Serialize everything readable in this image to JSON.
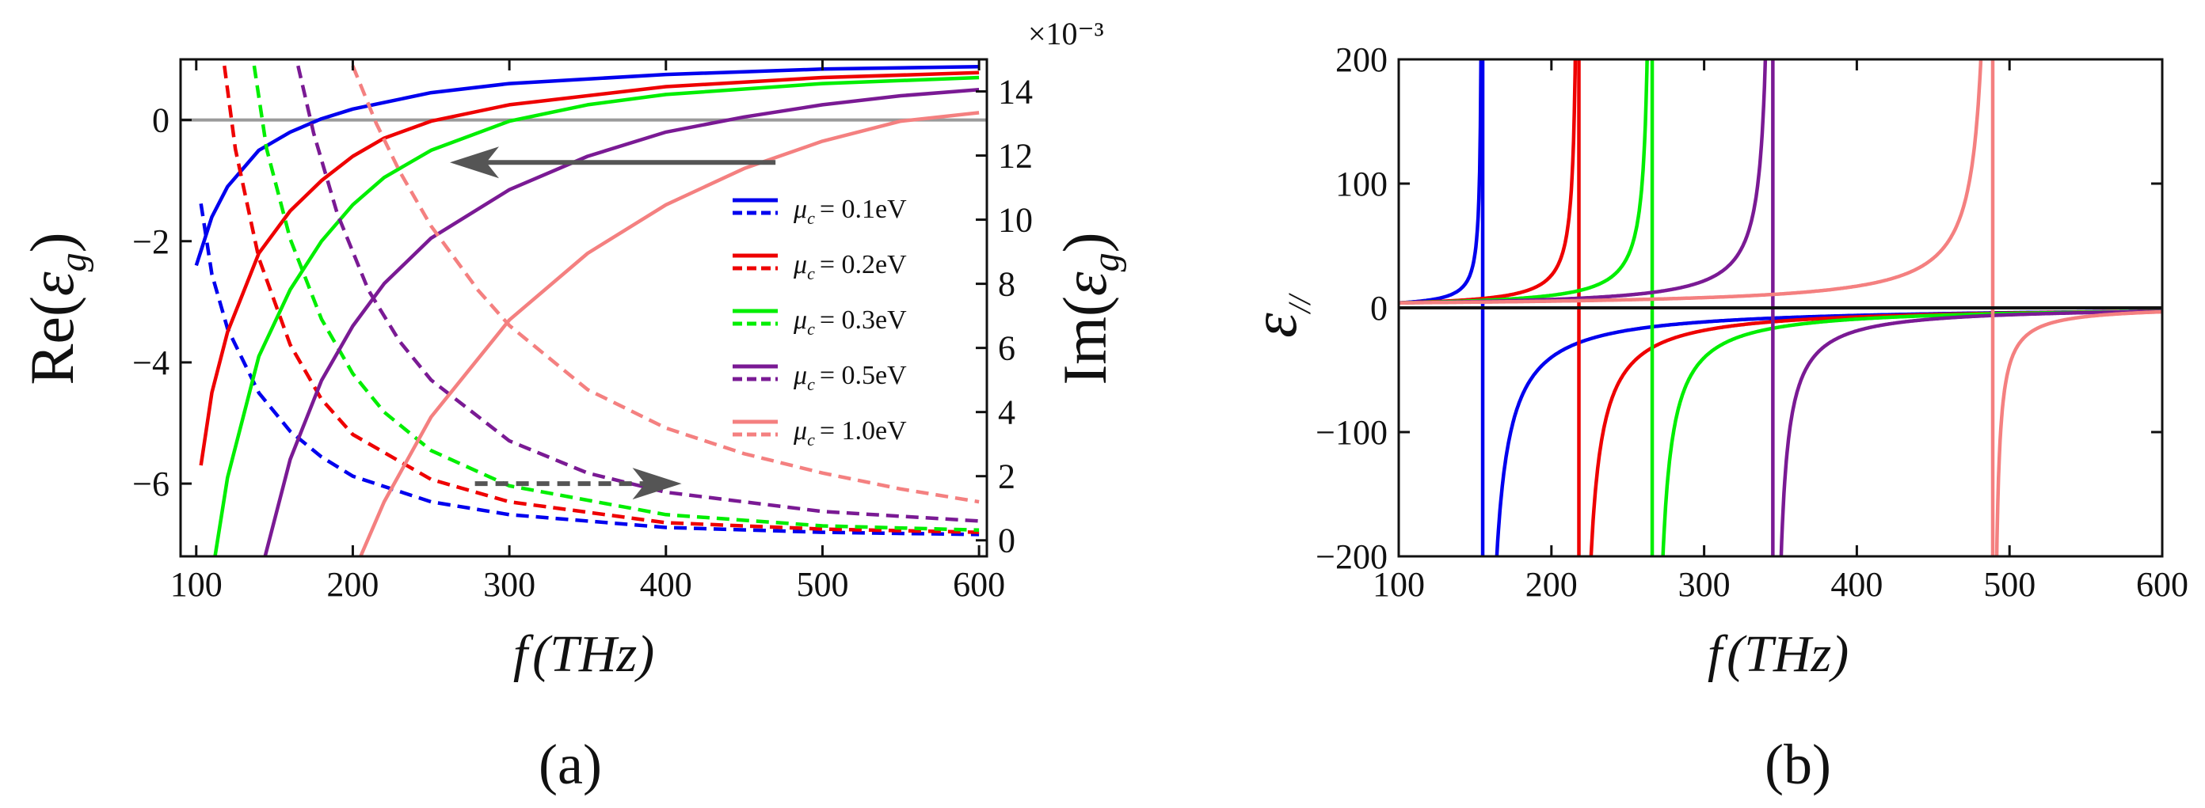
{
  "chart_data": [
    {
      "panel": "a",
      "type": "line",
      "panel_label": "(a)",
      "xlabel_f": "f",
      "xlabel_unit": "(THz)",
      "ylabel_left": {
        "prefix": "Re(",
        "symbol": "ε",
        "sub": "g",
        "suffix": ")"
      },
      "ylabel_right": {
        "prefix": "Im(",
        "symbol": "ε",
        "sub": "g",
        "suffix": ")"
      },
      "right_axis_multiplier": "×10⁻³",
      "xlim": [
        90,
        605
      ],
      "ylim_left": [
        -7.2,
        1.0
      ],
      "ylim_right": [
        -0.5,
        15.0
      ],
      "x_ticks": [
        "100",
        "200",
        "300",
        "400",
        "500",
        "600"
      ],
      "y_ticks_left": [
        "0",
        "−2",
        "−4",
        "−6"
      ],
      "y_ticks_right": [
        "0",
        "2",
        "4",
        "6",
        "8",
        "10",
        "12",
        "14"
      ],
      "reference_line_y": 0,
      "arrows": [
        {
          "style": "solid",
          "from_x": 470,
          "from_y": -0.7,
          "to_x": 262,
          "to_y": -0.7,
          "meaning": "left axis"
        },
        {
          "style": "dashed",
          "from_x": 278,
          "from_y": -6.0,
          "to_x": 410,
          "to_y": -6.0,
          "meaning": "right axis"
        }
      ],
      "legend_prefix": "μ",
      "legend_sub": "c",
      "series": [
        {
          "name": "0.1",
          "legend": "= 0.1eV",
          "color": "#0000ee",
          "re": {
            "x": [
              100,
              110,
              120,
              140,
              160,
              180,
              200,
              250,
              300,
              400,
              500,
              600
            ],
            "y": [
              -2.4,
              -1.6,
              -1.1,
              -0.5,
              -0.2,
              0.02,
              0.18,
              0.45,
              0.6,
              0.75,
              0.84,
              0.88
            ]
          },
          "im": {
            "x": [
              103,
              110,
              120,
              140,
              160,
              180,
              200,
              250,
              300,
              400,
              500,
              600
            ],
            "y": [
              10.5,
              8.3,
              6.6,
              4.6,
              3.4,
              2.6,
              2.0,
              1.2,
              0.8,
              0.4,
              0.25,
              0.18
            ]
          }
        },
        {
          "name": "0.2",
          "legend": "= 0.2eV",
          "color": "#ee0000",
          "re": {
            "x": [
              103,
              110,
              120,
              140,
              160,
              180,
              200,
              220,
              250,
              300,
              400,
              500,
              600
            ],
            "y": [
              -5.7,
              -4.5,
              -3.5,
              -2.2,
              -1.5,
              -1.0,
              -0.6,
              -0.3,
              -0.02,
              0.25,
              0.55,
              0.7,
              0.78
            ]
          },
          "im": {
            "x": [
              118,
              125,
              140,
              160,
              180,
              200,
              250,
              300,
              400,
              500,
              600
            ],
            "y": [
              14.8,
              12.2,
              8.8,
              6.1,
              4.4,
              3.3,
              1.9,
              1.2,
              0.55,
              0.35,
              0.25
            ]
          }
        },
        {
          "name": "0.3",
          "legend": "= 0.3eV",
          "color": "#00ee00",
          "re": {
            "x": [
              112,
              120,
              140,
              160,
              180,
              200,
              220,
              250,
              300,
              350,
              400,
              500,
              600
            ],
            "y": [
              -7.2,
              -5.9,
              -3.9,
              -2.8,
              -2.0,
              -1.4,
              -0.95,
              -0.5,
              -0.02,
              0.25,
              0.42,
              0.6,
              0.7
            ]
          },
          "im": {
            "x": [
              137,
              145,
              160,
              180,
              200,
              220,
              250,
              300,
              400,
              500,
              600
            ],
            "y": [
              14.8,
              12.2,
              9.4,
              6.9,
              5.2,
              4.0,
              2.8,
              1.7,
              0.8,
              0.45,
              0.32
            ]
          }
        },
        {
          "name": "0.5",
          "legend": "= 0.5eV",
          "color": "#7a1a94",
          "re": {
            "x": [
              144,
              160,
              180,
              200,
              220,
              250,
              300,
              350,
              400,
              450,
              500,
              550,
              600
            ],
            "y": [
              -7.2,
              -5.6,
              -4.3,
              -3.4,
              -2.7,
              -1.95,
              -1.15,
              -0.6,
              -0.2,
              0.05,
              0.25,
              0.4,
              0.5
            ]
          },
          "im": {
            "x": [
              165,
              175,
              190,
              210,
              230,
              250,
              300,
              350,
              400,
              500,
              600
            ],
            "y": [
              14.8,
              12.7,
              10.2,
              7.8,
              6.2,
              5.0,
              3.1,
              2.1,
              1.5,
              0.9,
              0.6
            ]
          }
        },
        {
          "name": "1.0",
          "legend": "= 1.0eV",
          "color": "#f48080",
          "re": {
            "x": [
              205,
              220,
              250,
              300,
              350,
              400,
              450,
              500,
              550,
              600
            ],
            "y": [
              -7.2,
              -6.3,
              -4.9,
              -3.3,
              -2.2,
              -1.4,
              -0.8,
              -0.35,
              -0.02,
              0.12
            ]
          },
          "im": {
            "x": [
              200,
              215,
              230,
              250,
              280,
              300,
              350,
              400,
              450,
              500,
              550,
              600
            ],
            "y": [
              14.8,
              13.0,
              11.5,
              9.8,
              7.8,
              6.7,
              4.7,
              3.5,
              2.7,
              2.1,
              1.6,
              1.2
            ]
          }
        }
      ]
    },
    {
      "panel": "b",
      "type": "line",
      "panel_label": "(b)",
      "xlabel_f": "f",
      "xlabel_unit": "(THz)",
      "ylabel": {
        "symbol": "ε",
        "sub": "//"
      },
      "xlim": [
        100,
        600
      ],
      "ylim": [
        -200,
        200
      ],
      "x_ticks": [
        "100",
        "200",
        "300",
        "400",
        "500",
        "600"
      ],
      "y_ticks": [
        "200",
        "100",
        "0",
        "−100",
        "−200"
      ],
      "reference_line_y": 0,
      "series": [
        {
          "name": "0.1",
          "color": "#0000ee",
          "pole": 155
        },
        {
          "name": "0.2",
          "color": "#ee0000",
          "pole": 218
        },
        {
          "name": "0.3",
          "color": "#00ee00",
          "pole": 266
        },
        {
          "name": "0.5",
          "color": "#7a1a94",
          "pole": 345
        },
        {
          "name": "1.0",
          "color": "#f48080",
          "pole": 489
        }
      ]
    }
  ]
}
